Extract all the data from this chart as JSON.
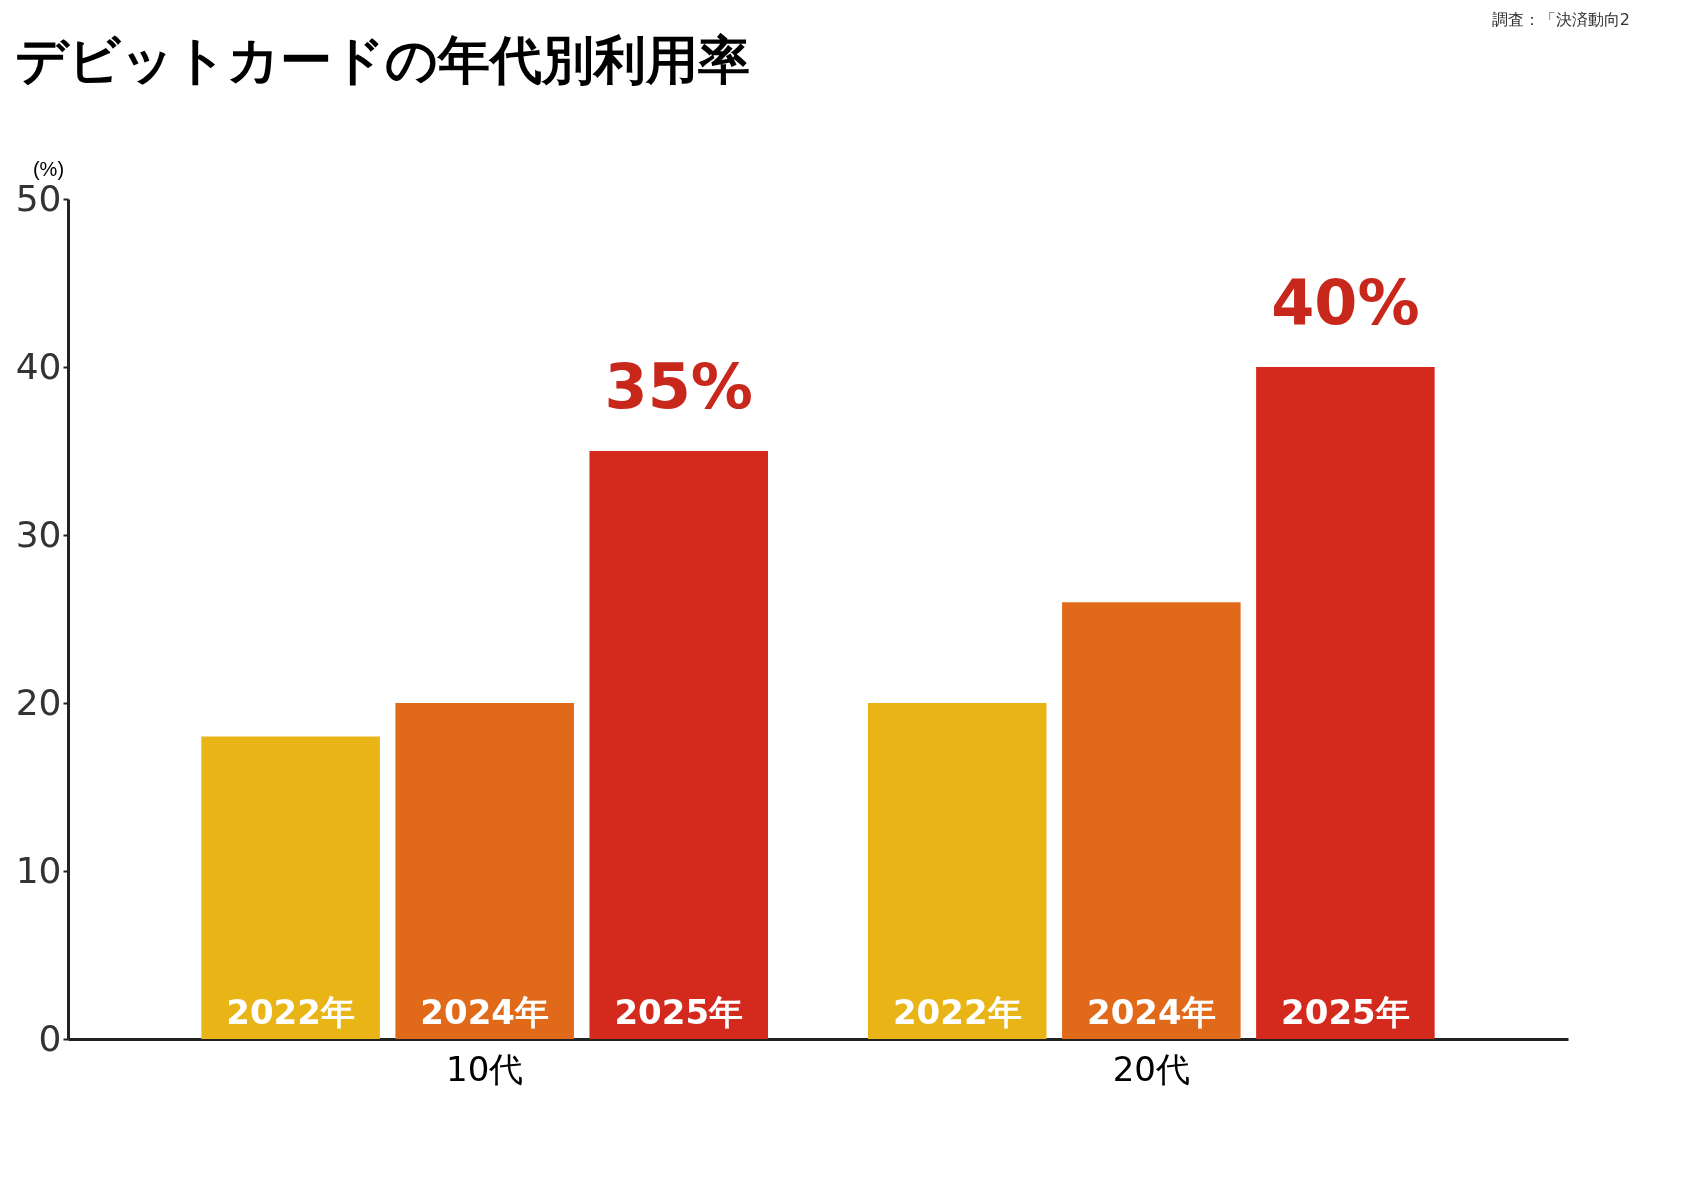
{
  "chart_data": {
    "type": "bar",
    "title": "デビットカードの年代別利用率",
    "ylabel": "(%)",
    "categories": [
      "10代",
      "20代"
    ],
    "series": [
      {
        "name": "2022年",
        "color": "#e8b416",
        "values": [
          18,
          20
        ]
      },
      {
        "name": "2024年",
        "color": "#e06a1a",
        "values": [
          20,
          26
        ]
      },
      {
        "name": "2025年",
        "color": "#d42a1e",
        "values": [
          35,
          40
        ],
        "value_labels": [
          "35%",
          "40%"
        ]
      }
    ],
    "ylim": [
      0,
      50
    ],
    "yticks": [
      0,
      10,
      20,
      30,
      40,
      50
    ],
    "grid": false,
    "legend": false,
    "annotations": [
      "調査：「決済動向2"
    ]
  }
}
